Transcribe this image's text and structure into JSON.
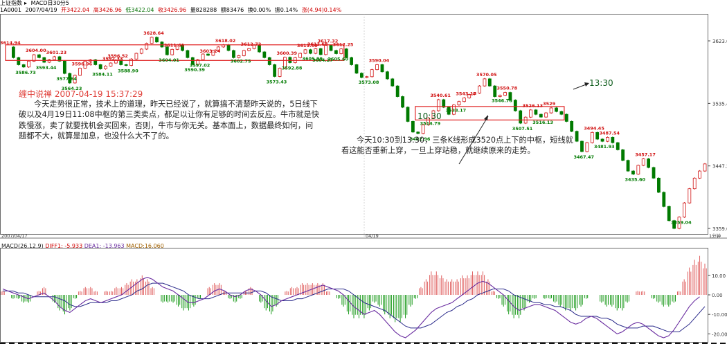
{
  "header": {
    "instrument_title": "上证指数",
    "indicator_title": "MACD日30分5",
    "code": "1A0001",
    "date": "2007/04/19",
    "open": "开3422.04",
    "high": "高3426.96",
    "low": "低3422.04",
    "close": "收3426.96",
    "volume": "量828288",
    "amount": "额83476",
    "turnover": "换0.00%",
    "amplitude": "振0.14%",
    "change": "涨(4.94)0.14%"
  },
  "notes": {
    "note1_title": "缠中说禅 2007-04-19 15:37:29",
    "note1_body": "今天走势很正常，技术上的道理，昨天已经说了，就算搞不清楚昨天说的，5日线下破以及4月19日11:08中枢的第三类卖点，都足以让你有足够的时间去反应。牛市就是快跌慢涨，卖了就要找机会买回来，否则，牛市与你无关。基本面上，数据最终如何，问题都不大，就算是加息，也没什么大不了的。",
    "note2_body": "今天10:30到13:30，三条K线形成3520点上下的中枢，短线就看这能否重新上穿，一旦上穿站稳，就继续原来的走势。",
    "label_1030": "10:30",
    "label_1330": "13:30"
  },
  "colors": {
    "up": "#d01010",
    "down": "#007a00",
    "box": "#e02020",
    "dif": "#6a2da0",
    "dea": "#2a2a8a",
    "macd_up": "#e06060",
    "macd_down": "#1a9a1a"
  },
  "chart_data": [
    {
      "type": "candlestick",
      "title": "上证指数",
      "x_labels": [
        "2007/04/17",
        "04/19",
        "1分钟"
      ],
      "ylim": [
        3359.04,
        3650
      ],
      "y_ticks": [
        "3623.6",
        "3535.4",
        "3447.2",
        "3359.0"
      ],
      "closes": [
        3614.94,
        3600,
        3590,
        3586.73,
        3595,
        3604,
        3600,
        3593.44,
        3597,
        3601.23,
        3595,
        3577.64,
        3564.23,
        3575,
        3585,
        3595,
        3596.96,
        3590,
        3584.11,
        3588,
        3592.33,
        3596.52,
        3590,
        3588.9,
        3598,
        3606,
        3612,
        3620,
        3628.64,
        3622,
        3615,
        3604.01,
        3611.61,
        3618,
        3610,
        3600,
        3590.39,
        3597.02,
        3605,
        3603.24,
        3610,
        3615,
        3618.02,
        3610,
        3600,
        3602.75,
        3610,
        3612.72,
        3618,
        3608,
        3600,
        3590,
        3573.43,
        3585,
        3600.39,
        3592.88,
        3600,
        3606,
        3611.08,
        3605.99,
        3612.68,
        3604.27,
        3617.32,
        3610,
        3605.6,
        3612.25,
        3600,
        3590,
        3578,
        3572,
        3573.08,
        3583,
        3590.04,
        3580,
        3570,
        3560,
        3545,
        3530,
        3510,
        3495,
        3492.96,
        3505,
        3514.79,
        3525,
        3540.61,
        3530,
        3520,
        3533.17,
        3538,
        3543.17,
        3548,
        3550,
        3560,
        3570.05,
        3560,
        3545,
        3546.76,
        3550.78,
        3540,
        3525,
        3507.51,
        3516,
        3526.13,
        3520,
        3516.13,
        3522,
        3529,
        3524,
        3520,
        3510,
        3496,
        3482,
        3467.47,
        3480,
        3494.45,
        3485,
        3481.93,
        3487.54,
        3480,
        3470,
        3455,
        3440,
        3435.6,
        3448,
        3457.17,
        3445,
        3430,
        3410,
        3390,
        3370,
        3359.04,
        3375,
        3395,
        3415,
        3430,
        3440,
        3450
      ],
      "labels": [
        {
          "i": 0,
          "text": "3614.94",
          "dir": "up"
        },
        {
          "i": 3,
          "text": "3586.73",
          "dir": "down"
        },
        {
          "i": 5,
          "text": "3604.00",
          "dir": "up"
        },
        {
          "i": 7,
          "text": "3593.44",
          "dir": "down"
        },
        {
          "i": 9,
          "text": "3601.23",
          "dir": "up"
        },
        {
          "i": 11,
          "text": "3577.64",
          "dir": "down"
        },
        {
          "i": 12,
          "text": "3564.23",
          "dir": "down"
        },
        {
          "i": 14,
          "text": "3596.96",
          "dir": "up"
        },
        {
          "i": 18,
          "text": "3584.11",
          "dir": "down"
        },
        {
          "i": 20,
          "text": "3592.33",
          "dir": "up"
        },
        {
          "i": 21,
          "text": "3596.52",
          "dir": "up"
        },
        {
          "i": 23,
          "text": "3588.90",
          "dir": "down"
        },
        {
          "i": 28,
          "text": "3628.64",
          "dir": "up"
        },
        {
          "i": 31,
          "text": "3604.01",
          "dir": "down"
        },
        {
          "i": 32,
          "text": "3611.61",
          "dir": "up"
        },
        {
          "i": 36,
          "text": "3590.39",
          "dir": "down"
        },
        {
          "i": 37,
          "text": "3597.02",
          "dir": "down"
        },
        {
          "i": 39,
          "text": "3603.24",
          "dir": "up"
        },
        {
          "i": 42,
          "text": "3618.02",
          "dir": "up"
        },
        {
          "i": 45,
          "text": "3602.75",
          "dir": "down"
        },
        {
          "i": 47,
          "text": "3612.72",
          "dir": "up"
        },
        {
          "i": 52,
          "text": "3573.43",
          "dir": "down"
        },
        {
          "i": 54,
          "text": "3600.39",
          "dir": "up"
        },
        {
          "i": 55,
          "text": "3592.88",
          "dir": "down"
        },
        {
          "i": 58,
          "text": "3611.08",
          "dir": "up"
        },
        {
          "i": 59,
          "text": "3605.99",
          "dir": "down"
        },
        {
          "i": 60,
          "text": "3612.68",
          "dir": "up"
        },
        {
          "i": 61,
          "text": "3604.27",
          "dir": "down"
        },
        {
          "i": 62,
          "text": "3617.32",
          "dir": "up"
        },
        {
          "i": 64,
          "text": "3605.60",
          "dir": "down"
        },
        {
          "i": 65,
          "text": "3612.25",
          "dir": "up"
        },
        {
          "i": 70,
          "text": "3573.08",
          "dir": "down"
        },
        {
          "i": 72,
          "text": "3590.04",
          "dir": "up"
        },
        {
          "i": 80,
          "text": "3492.96",
          "dir": "down"
        },
        {
          "i": 82,
          "text": "3514.79",
          "dir": "down"
        },
        {
          "i": 84,
          "text": "3540.61",
          "dir": "up"
        },
        {
          "i": 87,
          "text": "3533.17",
          "dir": "down"
        },
        {
          "i": 89,
          "text": "3543.17",
          "dir": "up"
        },
        {
          "i": 93,
          "text": "3570.05",
          "dir": "up"
        },
        {
          "i": 96,
          "text": "3546.76",
          "dir": "down"
        },
        {
          "i": 97,
          "text": "3550.78",
          "dir": "up"
        },
        {
          "i": 100,
          "text": "3507.51",
          "dir": "down"
        },
        {
          "i": 102,
          "text": "3526.13",
          "dir": "up"
        },
        {
          "i": 104,
          "text": "3516.13",
          "dir": "down"
        },
        {
          "i": 106,
          "text": "3529",
          "dir": "up"
        },
        {
          "i": 112,
          "text": "3467.47",
          "dir": "down"
        },
        {
          "i": 114,
          "text": "3494.45",
          "dir": "up"
        },
        {
          "i": 116,
          "text": "3481.93",
          "dir": "down"
        },
        {
          "i": 117,
          "text": "3487.54",
          "dir": "up"
        },
        {
          "i": 122,
          "text": "3435.60",
          "dir": "down"
        },
        {
          "i": 124,
          "text": "3457.17",
          "dir": "up"
        },
        {
          "i": 131,
          "text": "3359.04",
          "dir": "down"
        },
        {
          "i": 137,
          "text": "3450",
          "dir": "up"
        }
      ],
      "zhongshu_boxes": [
        {
          "i_start": 0,
          "i_end": 65,
          "top": 3618,
          "bottom": 3596
        },
        {
          "i_start": 80,
          "i_end": 108,
          "top": 3531,
          "bottom": 3512
        }
      ]
    },
    {
      "type": "bar",
      "title": "MACD",
      "legend": {
        "name": "MACD(26,12,9)",
        "dif": "DIFF1: -5.933",
        "dea": "DEA1: -13.963",
        "macd": "MACD:16.060"
      },
      "ylim": [
        -22,
        22
      ],
      "y_ticks": [
        "10.00",
        "0.00",
        "-10.00",
        "-20.00"
      ],
      "dif": [
        3,
        2,
        1,
        0,
        -1,
        -2,
        -1,
        0,
        1,
        -1,
        -3,
        -6,
        -8,
        -9,
        -7,
        -5,
        -3,
        -2,
        -3,
        -4,
        -3,
        -2,
        -1,
        0,
        2,
        4,
        6,
        8,
        9,
        8,
        6,
        4,
        3,
        2,
        0,
        -2,
        -4,
        -4,
        -3,
        -2,
        0,
        2,
        3,
        2,
        0,
        -1,
        0,
        2,
        3,
        2,
        0,
        -3,
        -6,
        -5,
        -3,
        -2,
        -1,
        0,
        1,
        2,
        3,
        4,
        5,
        4,
        3,
        2,
        0,
        -3,
        -6,
        -8,
        -10,
        -9,
        -8,
        -10,
        -13,
        -16,
        -19,
        -21,
        -22,
        -20,
        -18,
        -15,
        -12,
        -9,
        -7,
        -6,
        -5,
        -4,
        -2,
        0,
        2,
        4,
        6,
        7,
        6,
        4,
        2,
        0,
        -3,
        -6,
        -8,
        -7,
        -6,
        -5,
        -5,
        -6,
        -7,
        -8,
        -10,
        -12,
        -14,
        -15,
        -14,
        -12,
        -11,
        -12,
        -14,
        -16,
        -18,
        -20,
        -19,
        -17,
        -15,
        -14,
        -15,
        -17,
        -19,
        -21,
        -22,
        -21,
        -18,
        -14,
        -10,
        -6,
        -3,
        -1
      ],
      "dea": [
        2,
        2,
        2,
        1,
        1,
        0,
        -1,
        -1,
        -1,
        -1,
        -1,
        -2,
        -3,
        -5,
        -6,
        -6,
        -5,
        -4,
        -4,
        -4,
        -4,
        -3,
        -3,
        -2,
        -1,
        0,
        2,
        3,
        5,
        6,
        6,
        6,
        5,
        4,
        3,
        2,
        0,
        -1,
        -2,
        -2,
        -2,
        -1,
        0,
        1,
        1,
        1,
        1,
        1,
        1,
        2,
        2,
        1,
        -1,
        -2,
        -3,
        -3,
        -3,
        -2,
        -2,
        -1,
        0,
        1,
        2,
        3,
        3,
        3,
        3,
        2,
        0,
        -2,
        -4,
        -5,
        -6,
        -7,
        -8,
        -10,
        -12,
        -14,
        -16,
        -17,
        -17,
        -17,
        -16,
        -15,
        -13,
        -11,
        -9,
        -8,
        -6,
        -5,
        -3,
        -2,
        0,
        1,
        2,
        3,
        3,
        3,
        2,
        0,
        -1,
        -2,
        -3,
        -4,
        -4,
        -5,
        -5,
        -6,
        -6,
        -7,
        -8,
        -10,
        -11,
        -11,
        -11,
        -11,
        -12,
        -12,
        -13,
        -15,
        -16,
        -17,
        -17,
        -17,
        -16,
        -16,
        -16,
        -17,
        -18,
        -19,
        -19,
        -19,
        -17,
        -15,
        -12,
        -9,
        -6
      ],
      "macd": [
        2,
        0,
        -2,
        -2,
        -4,
        -4,
        0,
        2,
        4,
        0,
        -4,
        -8,
        -10,
        -8,
        -2,
        2,
        4,
        4,
        2,
        0,
        2,
        2,
        4,
        4,
        6,
        8,
        8,
        10,
        8,
        4,
        0,
        -4,
        -4,
        -4,
        -6,
        -8,
        -8,
        -6,
        -2,
        0,
        4,
        6,
        6,
        2,
        -2,
        -4,
        -2,
        2,
        4,
        0,
        -4,
        -8,
        -10,
        -6,
        0,
        2,
        4,
        4,
        6,
        6,
        6,
        6,
        6,
        2,
        0,
        -2,
        -6,
        -10,
        -12,
        -12,
        -12,
        -8,
        -4,
        -6,
        -10,
        -12,
        -14,
        -14,
        -12,
        -6,
        -2,
        4,
        8,
        12,
        12,
        10,
        8,
        8,
        8,
        10,
        10,
        12,
        12,
        12,
        8,
        2,
        -2,
        -6,
        -10,
        -12,
        -12,
        -8,
        -4,
        -2,
        0,
        -2,
        -2,
        -4,
        -6,
        -8,
        -8,
        -8,
        -6,
        -2,
        0,
        0,
        -4,
        -6,
        -6,
        -8,
        -8,
        -4,
        0,
        2,
        2,
        0,
        -2,
        -4,
        -6,
        -6,
        -4,
        2,
        8,
        14,
        18,
        20,
        16
      ]
    }
  ]
}
